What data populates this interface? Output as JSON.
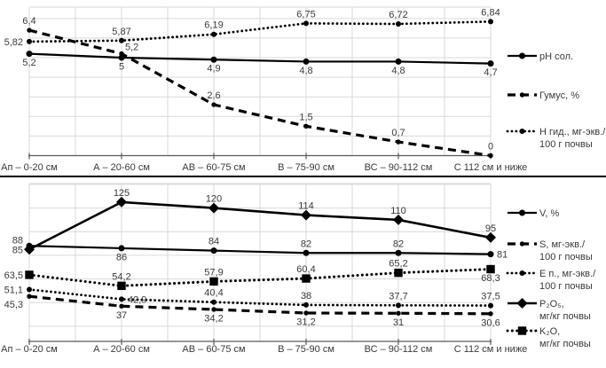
{
  "page": {
    "background": "#ffffff"
  },
  "style_tokens": {
    "series_color": "#000000",
    "grid_color": "#d9d9d9",
    "axis_color": "#595959",
    "label_color": "#3a3a3a",
    "divider_color": "#000000"
  },
  "chart_data": [
    {
      "type": "line",
      "title": "",
      "xlabel": "",
      "ylabel": "",
      "categories": [
        "Ап – 0-20 см",
        "А – 20-60 см",
        "АВ – 60-75 см",
        "В – 75-90 см",
        "ВС – 90-112 см",
        "С 112 см и ниже"
      ],
      "ylim": [
        0,
        7.58
      ],
      "grid_step": 1,
      "grid": true,
      "legend_position": "right",
      "series": [
        {
          "name_lines": [
            "pH сол."
          ],
          "values": [
            5.2,
            5,
            4.9,
            4.8,
            4.8,
            4.7
          ],
          "labels": [
            "5,2",
            "5",
            "4,9",
            "4,8",
            "4,8",
            "4,7"
          ],
          "label_pos": [
            "below",
            "below",
            "below",
            "below",
            "below",
            "below"
          ],
          "line": "solid",
          "marker": "circle"
        },
        {
          "name_lines": [
            "Гумус, %"
          ],
          "values": [
            6.4,
            5.2,
            2.6,
            1.5,
            0.7,
            0
          ],
          "labels": [
            "6,4",
            "5,2",
            "2,6",
            "1,5",
            "0,7",
            "0"
          ],
          "label_pos": [
            "above",
            "above-right",
            "above",
            "above",
            "above",
            "above"
          ],
          "line": "dashed",
          "marker": "dot"
        },
        {
          "name_lines": [
            "Н гид., мг-экв./",
            "100 г почвы"
          ],
          "values": [
            5.82,
            5.87,
            6.19,
            6.75,
            6.72,
            6.84
          ],
          "labels": [
            "5,82",
            "5,87",
            "6,19",
            "6,75",
            "6,72",
            "6,84"
          ],
          "label_pos": [
            "left",
            "above",
            "above",
            "above",
            "above",
            "above"
          ],
          "line": "dotted",
          "marker": "circle-sm"
        }
      ]
    },
    {
      "type": "line",
      "title": "",
      "xlabel": "",
      "ylabel": "",
      "categories": [
        "Ап – 0-20 см",
        "А – 20-60 см",
        "АВ – 60-75 см",
        "В – 75-90 см",
        "ВС – 90-112 см",
        "С 112 см и ниже"
      ],
      "ylim": [
        7.2,
        140.7
      ],
      "grid_step": 20,
      "grid": true,
      "legend_position": "right",
      "series": [
        {
          "name_lines": [
            "V, %"
          ],
          "values": [
            88,
            86,
            84,
            82,
            82,
            81
          ],
          "labels": [
            "88",
            "86",
            "84",
            "82",
            "82",
            "81"
          ],
          "label_pos": [
            "left-above",
            "below",
            "above",
            "above",
            "above",
            "right"
          ],
          "line": "solid",
          "marker": "circle"
        },
        {
          "name_lines": [
            "S, мг-экв./",
            "100 г почвы"
          ],
          "values": [
            45.3,
            37,
            34.2,
            31.2,
            31,
            30.6
          ],
          "labels": [
            "45,3",
            "37",
            "34,2",
            "31,2",
            "31",
            "30,6"
          ],
          "label_pos": [
            "left-below",
            "below",
            "below",
            "below",
            "below",
            "below"
          ],
          "line": "dashed",
          "marker": "dot"
        },
        {
          "name_lines": [
            "Е п., мг-экв./",
            "100 г почвы"
          ],
          "values": [
            51.1,
            42.9,
            40.4,
            38,
            37.7,
            37.5
          ],
          "labels": [
            "51,1",
            "42,9",
            "40,4",
            "38",
            "37,7",
            "37,5"
          ],
          "label_pos": [
            "left",
            "right",
            "above",
            "above",
            "above",
            "above"
          ],
          "line": "dotted",
          "marker": "circle-sm"
        },
        {
          "name_lines": [
            "P₂O₅,",
            "мг/кг почвы"
          ],
          "values": [
            85,
            125,
            120,
            114,
            110,
            95
          ],
          "labels": [
            "85",
            "125",
            "120",
            "114",
            "110",
            "95"
          ],
          "label_pos": [
            "left",
            "above",
            "above",
            "above",
            "above",
            "above"
          ],
          "line": "solid-bold",
          "marker": "diamond"
        },
        {
          "name_lines": [
            "K₂O,",
            "мг/кг почвы"
          ],
          "values": [
            63.5,
            54.2,
            57.9,
            60.4,
            65.2,
            68.3
          ],
          "labels": [
            "63,5",
            "54,2",
            "57,9",
            "60,4",
            "65,2",
            "68,3"
          ],
          "label_pos": [
            "left",
            "above",
            "above",
            "above",
            "above",
            "below"
          ],
          "line": "dotted-bold",
          "marker": "square"
        }
      ]
    }
  ]
}
